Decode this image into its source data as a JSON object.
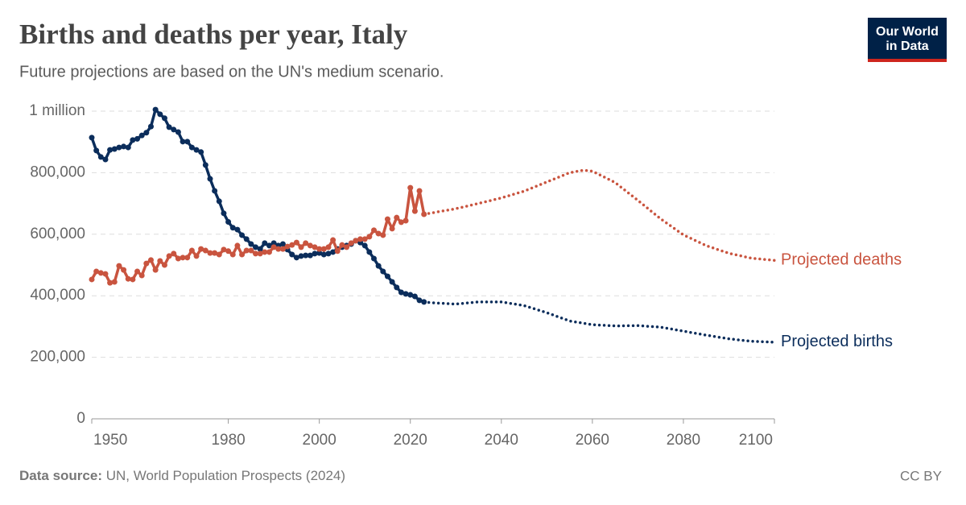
{
  "chart_data": {
    "type": "line",
    "title": "Births and deaths per year, Italy",
    "subtitle": "Future projections are based on the UN's medium scenario.",
    "source_label": "Data source:",
    "source": "UN, World Population Prospects (2024)",
    "license": "CC BY",
    "logo": [
      "Our World",
      "in Data"
    ],
    "xlim": [
      1950,
      2100
    ],
    "xticks": [
      1950,
      1980,
      2000,
      2020,
      2040,
      2060,
      2080,
      2100
    ],
    "ylim": [
      0,
      1000000
    ],
    "yticks": [
      0,
      {
        "value": 200000,
        "label": "200,000"
      },
      {
        "value": 400000,
        "label": "400,000"
      },
      {
        "value": 600000,
        "label": "600,000"
      },
      {
        "value": 800000,
        "label": "800,000"
      },
      {
        "value": 1000000,
        "label": "1 million"
      }
    ],
    "grid": true,
    "series": [
      {
        "color": "#0b2d5b",
        "line_style": "solid",
        "markers": true,
        "x": [
          1950,
          1951,
          1952,
          1953,
          1954,
          1955,
          1956,
          1957,
          1958,
          1959,
          1960,
          1961,
          1962,
          1963,
          1964,
          1965,
          1966,
          1967,
          1968,
          1969,
          1970,
          1971,
          1972,
          1973,
          1974,
          1975,
          1976,
          1977,
          1978,
          1979,
          1980,
          1981,
          1982,
          1983,
          1984,
          1985,
          1986,
          1987,
          1988,
          1989,
          1990,
          1991,
          1992,
          1993,
          1994,
          1995,
          1996,
          1997,
          1998,
          1999,
          2000,
          2001,
          2002,
          2003,
          2004,
          2005,
          2006,
          2007,
          2008,
          2009,
          2010,
          2011,
          2012,
          2013,
          2014,
          2015,
          2016,
          2017,
          2018,
          2019,
          2020,
          2021,
          2022,
          2023
        ],
        "values": [
          914000,
          872000,
          851000,
          843000,
          874000,
          877000,
          882000,
          885000,
          882000,
          906000,
          910000,
          921000,
          930000,
          950000,
          1005000,
          990000,
          977000,
          948000,
          940000,
          932000,
          901000,
          901000,
          882000,
          874000,
          867000,
          825000,
          780000,
          741000,
          707000,
          668000,
          640000,
          621000,
          615000,
          597000,
          584000,
          568000,
          558000,
          552000,
          571000,
          563000,
          571000,
          563000,
          568000,
          550000,
          534000,
          524000,
          529000,
          531000,
          531000,
          537000,
          539000,
          534000,
          537000,
          542000,
          552000,
          558000,
          563000,
          568000,
          579000,
          573000,
          563000,
          542000,
          521000,
          497000,
          479000,
          463000,
          445000,
          427000,
          411000,
          406000,
          403000,
          398000,
          385000,
          380000
        ]
      },
      {
        "color": "#c9543f",
        "line_style": "solid",
        "markers": true,
        "x": [
          1950,
          1951,
          1952,
          1953,
          1954,
          1955,
          1956,
          1957,
          1958,
          1959,
          1960,
          1961,
          1962,
          1963,
          1964,
          1965,
          1966,
          1967,
          1968,
          1969,
          1970,
          1971,
          1972,
          1973,
          1974,
          1975,
          1976,
          1977,
          1978,
          1979,
          1980,
          1981,
          1982,
          1983,
          1984,
          1985,
          1986,
          1987,
          1988,
          1989,
          1990,
          1991,
          1992,
          1993,
          1994,
          1995,
          1996,
          1997,
          1998,
          1999,
          2000,
          2001,
          2002,
          2003,
          2004,
          2005,
          2006,
          2007,
          2008,
          2009,
          2010,
          2011,
          2012,
          2013,
          2014,
          2015,
          2016,
          2017,
          2018,
          2019,
          2020,
          2021,
          2022,
          2023
        ],
        "values": [
          453000,
          479000,
          474000,
          471000,
          442000,
          445000,
          497000,
          484000,
          455000,
          453000,
          479000,
          466000,
          505000,
          516000,
          484000,
          513000,
          500000,
          529000,
          537000,
          521000,
          524000,
          524000,
          547000,
          529000,
          552000,
          547000,
          539000,
          539000,
          534000,
          550000,
          545000,
          534000,
          563000,
          534000,
          547000,
          547000,
          537000,
          537000,
          542000,
          542000,
          558000,
          552000,
          552000,
          560000,
          565000,
          573000,
          558000,
          571000,
          563000,
          558000,
          552000,
          552000,
          558000,
          581000,
          545000,
          565000,
          558000,
          571000,
          579000,
          584000,
          584000,
          592000,
          613000,
          602000,
          597000,
          649000,
          618000,
          654000,
          639000,
          644000,
          751000,
          675000,
          741000,
          665000
        ]
      },
      {
        "name": "Projected births",
        "color": "#0b2d5b",
        "line_style": "dotted",
        "markers": false,
        "x": [
          2023,
          2025,
          2030,
          2035,
          2040,
          2045,
          2050,
          2055,
          2060,
          2065,
          2070,
          2075,
          2080,
          2085,
          2090,
          2095,
          2100
        ],
        "values": [
          380000,
          377000,
          373000,
          380000,
          380000,
          368000,
          345000,
          318000,
          306000,
          302000,
          303000,
          298000,
          285000,
          272000,
          260000,
          252000,
          249000
        ]
      },
      {
        "name": "Projected deaths",
        "color": "#c9543f",
        "line_style": "dotted",
        "markers": false,
        "x": [
          2023,
          2025,
          2030,
          2035,
          2040,
          2045,
          2050,
          2055,
          2058,
          2060,
          2065,
          2070,
          2075,
          2080,
          2085,
          2090,
          2095,
          2100
        ],
        "values": [
          665000,
          670000,
          683000,
          700000,
          718000,
          740000,
          770000,
          800000,
          808000,
          805000,
          768000,
          710000,
          650000,
          598000,
          563000,
          538000,
          522000,
          515000
        ]
      }
    ]
  }
}
